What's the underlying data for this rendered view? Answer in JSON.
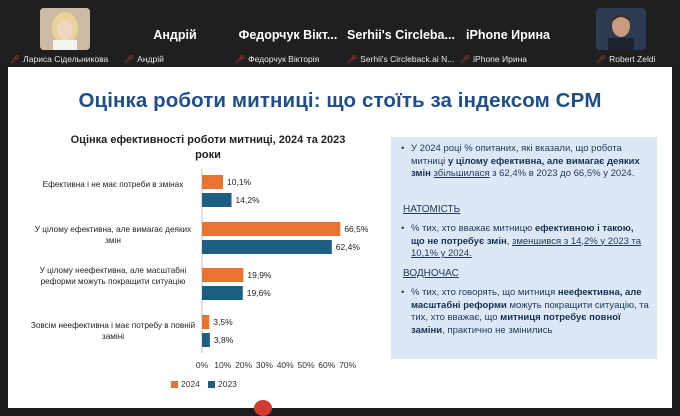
{
  "participants": [
    {
      "display": "",
      "caption": "Лариса Сідельникова",
      "has_video": true
    },
    {
      "display": "Андрій",
      "caption": "Андрій",
      "has_video": false
    },
    {
      "display": "Федорчук Вікт...",
      "caption": "Федорчук Вікторія",
      "has_video": false
    },
    {
      "display": "Serhii's Circleba...",
      "caption": "Serhii's Circleback.ai N...",
      "has_video": false
    },
    {
      "display": "iPhone Ирина",
      "caption": "iPhone Ирина",
      "has_video": false
    },
    {
      "display": "",
      "caption": "Robert Zeldi",
      "has_video": true
    }
  ],
  "slide": {
    "title": "Оцінка роботи митниці: що стоїть за індексом CPM"
  },
  "chart_data": {
    "type": "bar",
    "orientation": "horizontal",
    "title": "Оцінка ефективності роботи митниці, 2024 та 2023 роки",
    "categories": [
      "Ефективна і не має потреби в змінах",
      "У цілому ефективна, але вимагає деяких змін",
      "У цілому неефективна, але масштабні реформи можуть покращити ситуацію",
      "Зовсім неефективна і має потребу в повній заміні"
    ],
    "series": [
      {
        "name": "2024",
        "color": "#e97432",
        "values": [
          10.1,
          66.5,
          19.9,
          3.5
        ]
      },
      {
        "name": "2023",
        "color": "#1d5f82",
        "values": [
          14.2,
          62.4,
          19.6,
          3.8
        ]
      }
    ],
    "data_labels": {
      "2024": [
        "10,1%",
        "66,5%",
        "19,9%",
        "3,5%"
      ],
      "2023": [
        "14,2%",
        "62,4%",
        "19,6%",
        "3,8%"
      ]
    },
    "xlim": [
      0,
      70
    ],
    "xticks": [
      0,
      10,
      20,
      30,
      40,
      50,
      60,
      70
    ],
    "xtick_labels": [
      "0%",
      "10%",
      "20%",
      "30%",
      "40%",
      "50%",
      "60%",
      "70%"
    ],
    "legend": [
      "2024",
      "2023"
    ],
    "legend_position": "bottom",
    "grid": false
  },
  "panel": {
    "p1_a": "У 2024 році % опитаних, які вказали, що робота митниці ",
    "p1_b": "у цілому ефективна, але вимагає деяких змін",
    "p1_c": " ",
    "p1_d": "збільшилася",
    "p1_e": " з 62,4% в 2023 до 66,5% у 2024.",
    "heading1": "НАТОМІСТЬ",
    "p2_a": "% тих, хто вважає митницю ",
    "p2_b": "ефективною і такою, що не потребує змін",
    "p2_c": ", ",
    "p2_d": "зменшився з 14,2% у 2023 та 10,1% у 2024.",
    "heading2": "ВОДНОЧАС",
    "p3_a": "% тих, хто говорять, що митниця ",
    "p3_b": "неефективна, але масштабні реформи",
    "p3_c": " можуть покращити ситуацію, та тих, хто вважає, що ",
    "p3_d": "митниця потребує повної заміни",
    "p3_e": ", практично не змінились"
  }
}
